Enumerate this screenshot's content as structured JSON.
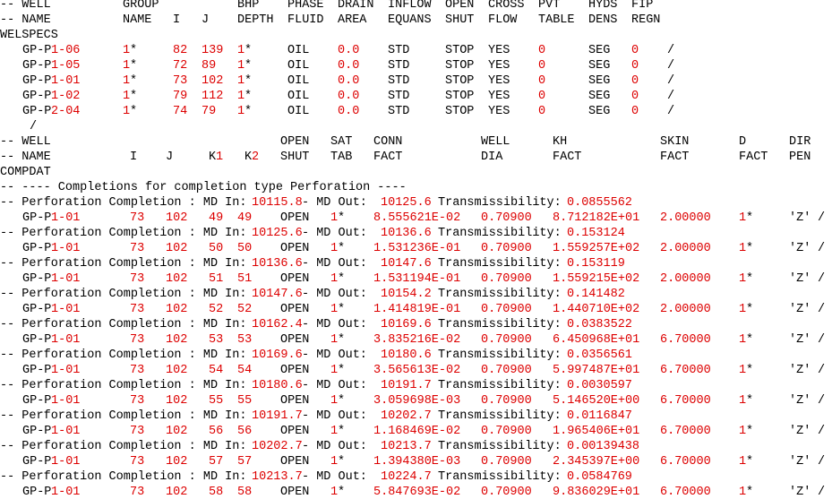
{
  "colors": {
    "text": "#000000",
    "value": "#dd0000",
    "background": "#ffffff"
  },
  "lines": [
    [
      [
        0,
        "-- WELL"
      ],
      [
        137,
        "GROUP"
      ],
      [
        265,
        "BHP"
      ],
      [
        321,
        "PHASE"
      ],
      [
        377,
        "DRAIN"
      ],
      [
        433,
        "INFLOW"
      ],
      [
        497,
        "OPEN"
      ],
      [
        545,
        "CROSS"
      ],
      [
        601,
        "PVT"
      ],
      [
        657,
        "HYDS"
      ],
      [
        705,
        "FIP"
      ]
    ],
    [
      [
        0,
        "-- NAME"
      ],
      [
        137,
        "NAME"
      ],
      [
        193,
        "I"
      ],
      [
        225,
        "J"
      ],
      [
        265,
        "DEPTH"
      ],
      [
        321,
        "FLUID"
      ],
      [
        377,
        "AREA"
      ],
      [
        433,
        "EQUANS"
      ],
      [
        497,
        "SHUT"
      ],
      [
        545,
        "FLOW"
      ],
      [
        601,
        "TABLE"
      ],
      [
        657,
        "DENS"
      ],
      [
        705,
        "REGN"
      ]
    ],
    [
      [
        0,
        "WELSPECS"
      ]
    ],
    [
      [
        25,
        "GP-P"
      ],
      [
        57,
        "1-06",
        "r"
      ],
      [
        137,
        "1",
        "r"
      ],
      [
        145,
        "*"
      ],
      [
        193,
        "82",
        "r"
      ],
      [
        225,
        "139",
        "r"
      ],
      [
        265,
        "1",
        "r"
      ],
      [
        273,
        "*"
      ],
      [
        321,
        "OIL"
      ],
      [
        377,
        "0.0",
        "r"
      ],
      [
        433,
        "STD"
      ],
      [
        497,
        "STOP"
      ],
      [
        545,
        "YES"
      ],
      [
        601,
        "0",
        "r"
      ],
      [
        657,
        "SEG"
      ],
      [
        705,
        "0",
        "r"
      ],
      [
        745,
        "/"
      ]
    ],
    [
      [
        25,
        "GP-P"
      ],
      [
        57,
        "1-05",
        "r"
      ],
      [
        137,
        "1",
        "r"
      ],
      [
        145,
        "*"
      ],
      [
        193,
        "72",
        "r"
      ],
      [
        225,
        "89",
        "r"
      ],
      [
        265,
        "1",
        "r"
      ],
      [
        273,
        "*"
      ],
      [
        321,
        "OIL"
      ],
      [
        377,
        "0.0",
        "r"
      ],
      [
        433,
        "STD"
      ],
      [
        497,
        "STOP"
      ],
      [
        545,
        "YES"
      ],
      [
        601,
        "0",
        "r"
      ],
      [
        657,
        "SEG"
      ],
      [
        705,
        "0",
        "r"
      ],
      [
        745,
        "/"
      ]
    ],
    [
      [
        25,
        "GP-P"
      ],
      [
        57,
        "1-01",
        "r"
      ],
      [
        137,
        "1",
        "r"
      ],
      [
        145,
        "*"
      ],
      [
        193,
        "73",
        "r"
      ],
      [
        225,
        "102",
        "r"
      ],
      [
        265,
        "1",
        "r"
      ],
      [
        273,
        "*"
      ],
      [
        321,
        "OIL"
      ],
      [
        377,
        "0.0",
        "r"
      ],
      [
        433,
        "STD"
      ],
      [
        497,
        "STOP"
      ],
      [
        545,
        "YES"
      ],
      [
        601,
        "0",
        "r"
      ],
      [
        657,
        "SEG"
      ],
      [
        705,
        "0",
        "r"
      ],
      [
        745,
        "/"
      ]
    ],
    [
      [
        25,
        "GP-P"
      ],
      [
        57,
        "1-02",
        "r"
      ],
      [
        137,
        "1",
        "r"
      ],
      [
        145,
        "*"
      ],
      [
        193,
        "79",
        "r"
      ],
      [
        225,
        "112",
        "r"
      ],
      [
        265,
        "1",
        "r"
      ],
      [
        273,
        "*"
      ],
      [
        321,
        "OIL"
      ],
      [
        377,
        "0.0",
        "r"
      ],
      [
        433,
        "STD"
      ],
      [
        497,
        "STOP"
      ],
      [
        545,
        "YES"
      ],
      [
        601,
        "0",
        "r"
      ],
      [
        657,
        "SEG"
      ],
      [
        705,
        "0",
        "r"
      ],
      [
        745,
        "/"
      ]
    ],
    [
      [
        25,
        "GP-P"
      ],
      [
        57,
        "2-04",
        "r"
      ],
      [
        137,
        "1",
        "r"
      ],
      [
        145,
        "*"
      ],
      [
        193,
        "74",
        "r"
      ],
      [
        225,
        "79",
        "r"
      ],
      [
        265,
        "1",
        "r"
      ],
      [
        273,
        "*"
      ],
      [
        321,
        "OIL"
      ],
      [
        377,
        "0.0",
        "r"
      ],
      [
        433,
        "STD"
      ],
      [
        497,
        "STOP"
      ],
      [
        545,
        "YES"
      ],
      [
        601,
        "0",
        "r"
      ],
      [
        657,
        "SEG"
      ],
      [
        705,
        "0",
        "r"
      ],
      [
        745,
        "/"
      ]
    ],
    [
      [
        33,
        "/"
      ]
    ],
    [
      [
        0,
        "-- WELL"
      ],
      [
        313,
        "OPEN"
      ],
      [
        369,
        "SAT"
      ],
      [
        417,
        "CONN"
      ],
      [
        537,
        "WELL"
      ],
      [
        617,
        "KH"
      ],
      [
        737,
        "SKIN"
      ],
      [
        825,
        "D"
      ],
      [
        881,
        "DIR"
      ]
    ],
    [
      [
        0,
        "-- NAME"
      ],
      [
        145,
        "I"
      ],
      [
        185,
        "J"
      ],
      [
        233,
        "K"
      ],
      [
        241,
        "1",
        "r"
      ],
      [
        273,
        "K"
      ],
      [
        281,
        "2",
        "r"
      ],
      [
        313,
        "SHUT"
      ],
      [
        369,
        "TAB"
      ],
      [
        417,
        "FACT"
      ],
      [
        537,
        "DIA"
      ],
      [
        617,
        "FACT"
      ],
      [
        737,
        "FACT"
      ],
      [
        825,
        "FACT"
      ],
      [
        881,
        "PEN"
      ]
    ],
    [
      [
        0,
        "COMPDAT"
      ]
    ],
    [
      [
        0,
        "-- ---- Completions for completion type Perforation ----"
      ]
    ],
    [
      [
        0,
        "-- Perforation Completion : MD In: "
      ],
      [
        281,
        "10115.8",
        "r"
      ],
      [
        337,
        "- MD Out: "
      ],
      [
        425,
        "10125.6",
        "r"
      ],
      [
        489,
        "Transmissibility: "
      ],
      [
        633,
        "0.0855562",
        "r"
      ]
    ],
    [
      [
        25,
        "GP-P"
      ],
      [
        57,
        "1-01",
        "r"
      ],
      [
        145,
        "73",
        "r"
      ],
      [
        185,
        "102",
        "r"
      ],
      [
        233,
        "49",
        "r"
      ],
      [
        265,
        "49",
        "r"
      ],
      [
        313,
        "OPEN"
      ],
      [
        369,
        "1",
        "r"
      ],
      [
        377,
        "*"
      ],
      [
        417,
        "8.555621E-02",
        "r"
      ],
      [
        537,
        "0.70900",
        "r"
      ],
      [
        617,
        "8.712182E+01",
        "r"
      ],
      [
        737,
        "2.00000",
        "r"
      ],
      [
        825,
        "1",
        "r"
      ],
      [
        833,
        "*"
      ],
      [
        881,
        "'Z'"
      ],
      [
        913,
        "/"
      ]
    ],
    [
      [
        0,
        "-- Perforation Completion : MD In: "
      ],
      [
        281,
        "10125.6",
        "r"
      ],
      [
        337,
        "- MD Out: "
      ],
      [
        425,
        "10136.6",
        "r"
      ],
      [
        489,
        "Transmissibility: "
      ],
      [
        633,
        "0.153124",
        "r"
      ]
    ],
    [
      [
        25,
        "GP-P"
      ],
      [
        57,
        "1-01",
        "r"
      ],
      [
        145,
        "73",
        "r"
      ],
      [
        185,
        "102",
        "r"
      ],
      [
        233,
        "50",
        "r"
      ],
      [
        265,
        "50",
        "r"
      ],
      [
        313,
        "OPEN"
      ],
      [
        369,
        "1",
        "r"
      ],
      [
        377,
        "*"
      ],
      [
        417,
        "1.531236E-01",
        "r"
      ],
      [
        537,
        "0.70900",
        "r"
      ],
      [
        617,
        "1.559257E+02",
        "r"
      ],
      [
        737,
        "2.00000",
        "r"
      ],
      [
        825,
        "1",
        "r"
      ],
      [
        833,
        "*"
      ],
      [
        881,
        "'Z'"
      ],
      [
        913,
        "/"
      ]
    ],
    [
      [
        0,
        "-- Perforation Completion : MD In: "
      ],
      [
        281,
        "10136.6",
        "r"
      ],
      [
        337,
        "- MD Out: "
      ],
      [
        425,
        "10147.6",
        "r"
      ],
      [
        489,
        "Transmissibility: "
      ],
      [
        633,
        "0.153119",
        "r"
      ]
    ],
    [
      [
        25,
        "GP-P"
      ],
      [
        57,
        "1-01",
        "r"
      ],
      [
        145,
        "73",
        "r"
      ],
      [
        185,
        "102",
        "r"
      ],
      [
        233,
        "51",
        "r"
      ],
      [
        265,
        "51",
        "r"
      ],
      [
        313,
        "OPEN"
      ],
      [
        369,
        "1",
        "r"
      ],
      [
        377,
        "*"
      ],
      [
        417,
        "1.531194E-01",
        "r"
      ],
      [
        537,
        "0.70900",
        "r"
      ],
      [
        617,
        "1.559215E+02",
        "r"
      ],
      [
        737,
        "2.00000",
        "r"
      ],
      [
        825,
        "1",
        "r"
      ],
      [
        833,
        "*"
      ],
      [
        881,
        "'Z'"
      ],
      [
        913,
        "/"
      ]
    ],
    [
      [
        0,
        "-- Perforation Completion : MD In: "
      ],
      [
        281,
        "10147.6",
        "r"
      ],
      [
        337,
        "- MD Out: "
      ],
      [
        425,
        "10154.2",
        "r"
      ],
      [
        489,
        "Transmissibility: "
      ],
      [
        633,
        "0.141482",
        "r"
      ]
    ],
    [
      [
        25,
        "GP-P"
      ],
      [
        57,
        "1-01",
        "r"
      ],
      [
        145,
        "73",
        "r"
      ],
      [
        185,
        "102",
        "r"
      ],
      [
        233,
        "52",
        "r"
      ],
      [
        265,
        "52",
        "r"
      ],
      [
        313,
        "OPEN"
      ],
      [
        369,
        "1",
        "r"
      ],
      [
        377,
        "*"
      ],
      [
        417,
        "1.414819E-01",
        "r"
      ],
      [
        537,
        "0.70900",
        "r"
      ],
      [
        617,
        "1.440710E+02",
        "r"
      ],
      [
        737,
        "2.00000",
        "r"
      ],
      [
        825,
        "1",
        "r"
      ],
      [
        833,
        "*"
      ],
      [
        881,
        "'Z'"
      ],
      [
        913,
        "/"
      ]
    ],
    [
      [
        0,
        "-- Perforation Completion : MD In: "
      ],
      [
        281,
        "10162.4",
        "r"
      ],
      [
        337,
        "- MD Out: "
      ],
      [
        425,
        "10169.6",
        "r"
      ],
      [
        489,
        "Transmissibility: "
      ],
      [
        633,
        "0.0383522",
        "r"
      ]
    ],
    [
      [
        25,
        "GP-P"
      ],
      [
        57,
        "1-01",
        "r"
      ],
      [
        145,
        "73",
        "r"
      ],
      [
        185,
        "102",
        "r"
      ],
      [
        233,
        "53",
        "r"
      ],
      [
        265,
        "53",
        "r"
      ],
      [
        313,
        "OPEN"
      ],
      [
        369,
        "1",
        "r"
      ],
      [
        377,
        "*"
      ],
      [
        417,
        "3.835216E-02",
        "r"
      ],
      [
        537,
        "0.70900",
        "r"
      ],
      [
        617,
        "6.450968E+01",
        "r"
      ],
      [
        737,
        "6.70000",
        "r"
      ],
      [
        825,
        "1",
        "r"
      ],
      [
        833,
        "*"
      ],
      [
        881,
        "'Z'"
      ],
      [
        913,
        "/"
      ]
    ],
    [
      [
        0,
        "-- Perforation Completion : MD In: "
      ],
      [
        281,
        "10169.6",
        "r"
      ],
      [
        337,
        "- MD Out: "
      ],
      [
        425,
        "10180.6",
        "r"
      ],
      [
        489,
        "Transmissibility: "
      ],
      [
        633,
        "0.0356561",
        "r"
      ]
    ],
    [
      [
        25,
        "GP-P"
      ],
      [
        57,
        "1-01",
        "r"
      ],
      [
        145,
        "73",
        "r"
      ],
      [
        185,
        "102",
        "r"
      ],
      [
        233,
        "54",
        "r"
      ],
      [
        265,
        "54",
        "r"
      ],
      [
        313,
        "OPEN"
      ],
      [
        369,
        "1",
        "r"
      ],
      [
        377,
        "*"
      ],
      [
        417,
        "3.565613E-02",
        "r"
      ],
      [
        537,
        "0.70900",
        "r"
      ],
      [
        617,
        "5.997487E+01",
        "r"
      ],
      [
        737,
        "6.70000",
        "r"
      ],
      [
        825,
        "1",
        "r"
      ],
      [
        833,
        "*"
      ],
      [
        881,
        "'Z'"
      ],
      [
        913,
        "/"
      ]
    ],
    [
      [
        0,
        "-- Perforation Completion : MD In: "
      ],
      [
        281,
        "10180.6",
        "r"
      ],
      [
        337,
        "- MD Out: "
      ],
      [
        425,
        "10191.7",
        "r"
      ],
      [
        489,
        "Transmissibility: "
      ],
      [
        633,
        "0.0030597",
        "r"
      ]
    ],
    [
      [
        25,
        "GP-P"
      ],
      [
        57,
        "1-01",
        "r"
      ],
      [
        145,
        "73",
        "r"
      ],
      [
        185,
        "102",
        "r"
      ],
      [
        233,
        "55",
        "r"
      ],
      [
        265,
        "55",
        "r"
      ],
      [
        313,
        "OPEN"
      ],
      [
        369,
        "1",
        "r"
      ],
      [
        377,
        "*"
      ],
      [
        417,
        "3.059698E-03",
        "r"
      ],
      [
        537,
        "0.70900",
        "r"
      ],
      [
        617,
        "5.146520E+00",
        "r"
      ],
      [
        737,
        "6.70000",
        "r"
      ],
      [
        825,
        "1",
        "r"
      ],
      [
        833,
        "*"
      ],
      [
        881,
        "'Z'"
      ],
      [
        913,
        "/"
      ]
    ],
    [
      [
        0,
        "-- Perforation Completion : MD In: "
      ],
      [
        281,
        "10191.7",
        "r"
      ],
      [
        337,
        "- MD Out: "
      ],
      [
        425,
        "10202.7",
        "r"
      ],
      [
        489,
        "Transmissibility: "
      ],
      [
        633,
        "0.0116847",
        "r"
      ]
    ],
    [
      [
        25,
        "GP-P"
      ],
      [
        57,
        "1-01",
        "r"
      ],
      [
        145,
        "73",
        "r"
      ],
      [
        185,
        "102",
        "r"
      ],
      [
        233,
        "56",
        "r"
      ],
      [
        265,
        "56",
        "r"
      ],
      [
        313,
        "OPEN"
      ],
      [
        369,
        "1",
        "r"
      ],
      [
        377,
        "*"
      ],
      [
        417,
        "1.168469E-02",
        "r"
      ],
      [
        537,
        "0.70900",
        "r"
      ],
      [
        617,
        "1.965406E+01",
        "r"
      ],
      [
        737,
        "6.70000",
        "r"
      ],
      [
        825,
        "1",
        "r"
      ],
      [
        833,
        "*"
      ],
      [
        881,
        "'Z'"
      ],
      [
        913,
        "/"
      ]
    ],
    [
      [
        0,
        "-- Perforation Completion : MD In: "
      ],
      [
        281,
        "10202.7",
        "r"
      ],
      [
        337,
        "- MD Out: "
      ],
      [
        425,
        "10213.7",
        "r"
      ],
      [
        489,
        "Transmissibility: "
      ],
      [
        633,
        "0.00139438",
        "r"
      ]
    ],
    [
      [
        25,
        "GP-P"
      ],
      [
        57,
        "1-01",
        "r"
      ],
      [
        145,
        "73",
        "r"
      ],
      [
        185,
        "102",
        "r"
      ],
      [
        233,
        "57",
        "r"
      ],
      [
        265,
        "57",
        "r"
      ],
      [
        313,
        "OPEN"
      ],
      [
        369,
        "1",
        "r"
      ],
      [
        377,
        "*"
      ],
      [
        417,
        "1.394380E-03",
        "r"
      ],
      [
        537,
        "0.70900",
        "r"
      ],
      [
        617,
        "2.345397E+00",
        "r"
      ],
      [
        737,
        "6.70000",
        "r"
      ],
      [
        825,
        "1",
        "r"
      ],
      [
        833,
        "*"
      ],
      [
        881,
        "'Z'"
      ],
      [
        913,
        "/"
      ]
    ],
    [
      [
        0,
        "-- Perforation Completion : MD In: "
      ],
      [
        281,
        "10213.7",
        "r"
      ],
      [
        337,
        "- MD Out: "
      ],
      [
        425,
        "10224.7",
        "r"
      ],
      [
        489,
        "Transmissibility: "
      ],
      [
        633,
        "0.0584769",
        "r"
      ]
    ],
    [
      [
        25,
        "GP-P"
      ],
      [
        57,
        "1-01",
        "r"
      ],
      [
        145,
        "73",
        "r"
      ],
      [
        185,
        "102",
        "r"
      ],
      [
        233,
        "58",
        "r"
      ],
      [
        265,
        "58",
        "r"
      ],
      [
        313,
        "OPEN"
      ],
      [
        369,
        "1",
        "r"
      ],
      [
        377,
        "*"
      ],
      [
        417,
        "5.847693E-02",
        "r"
      ],
      [
        537,
        "0.70900",
        "r"
      ],
      [
        617,
        "9.836029E+01",
        "r"
      ],
      [
        737,
        "6.70000",
        "r"
      ],
      [
        825,
        "1",
        "r"
      ],
      [
        833,
        "*"
      ],
      [
        881,
        "'Z'"
      ],
      [
        913,
        "/"
      ]
    ]
  ]
}
